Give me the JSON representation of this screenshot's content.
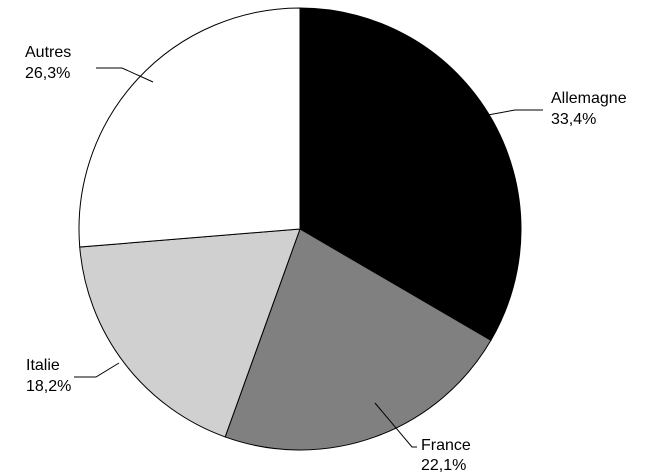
{
  "chart_data": {
    "type": "pie",
    "title": "",
    "start_angle": "12 o'clock, clockwise",
    "slices": [
      {
        "label": "Allemagne",
        "value": 33.4,
        "display": "33,4%",
        "color": "#000000"
      },
      {
        "label": "France",
        "value": 22.1,
        "display": "22,1%",
        "color": "#808080"
      },
      {
        "label": "Italie",
        "value": 18.2,
        "display": "18,2%",
        "color": "#d0d0d0"
      },
      {
        "label": "Autres",
        "value": 26.3,
        "display": "26,3%",
        "color": "#ffffff"
      }
    ]
  }
}
